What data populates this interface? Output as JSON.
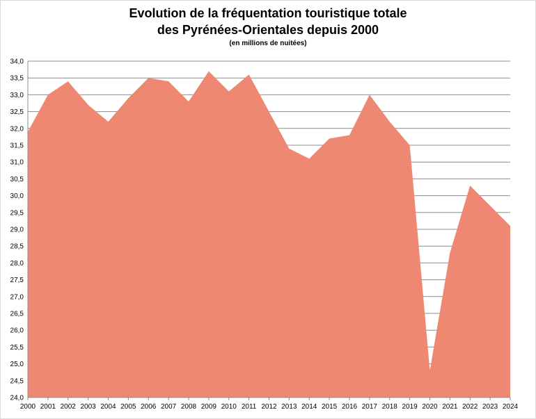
{
  "chart_data": {
    "type": "area",
    "title_line1": "Evolution de la fréquentation touristique totale",
    "title_line2": "des Pyrénées-Orientales depuis 2000",
    "subtitle": "(en millions de nuitées)",
    "xlabel": "",
    "ylabel": "",
    "ylim": [
      24.0,
      34.0
    ],
    "ytick_step": 0.5,
    "yticks": [
      "24,0",
      "24,5",
      "25,0",
      "25,5",
      "26,0",
      "26,5",
      "27,0",
      "27,5",
      "28,0",
      "28,5",
      "29,0",
      "29,5",
      "30,0",
      "30,5",
      "31,0",
      "31,5",
      "32,0",
      "32,5",
      "33,0",
      "33,5",
      "34,0"
    ],
    "categories": [
      "2000",
      "2001",
      "2002",
      "2003",
      "2004",
      "2005",
      "2006",
      "2007",
      "2008",
      "2009",
      "2010",
      "2011",
      "2012",
      "2013",
      "2014",
      "2015",
      "2016",
      "2017",
      "2018",
      "2019",
      "2020",
      "2021",
      "2022",
      "2023",
      "2024"
    ],
    "values": [
      31.9,
      33.0,
      33.4,
      32.7,
      32.2,
      32.9,
      33.5,
      33.4,
      32.8,
      33.7,
      33.1,
      33.6,
      32.5,
      31.4,
      31.1,
      31.7,
      31.8,
      33.0,
      32.2,
      31.5,
      24.8,
      28.3,
      30.3,
      29.7,
      29.1
    ],
    "grid": true,
    "legend": "none",
    "colors": {
      "area": "#ee8872",
      "grid": "#8c8c8c",
      "axis": "#8c8c8c"
    }
  }
}
